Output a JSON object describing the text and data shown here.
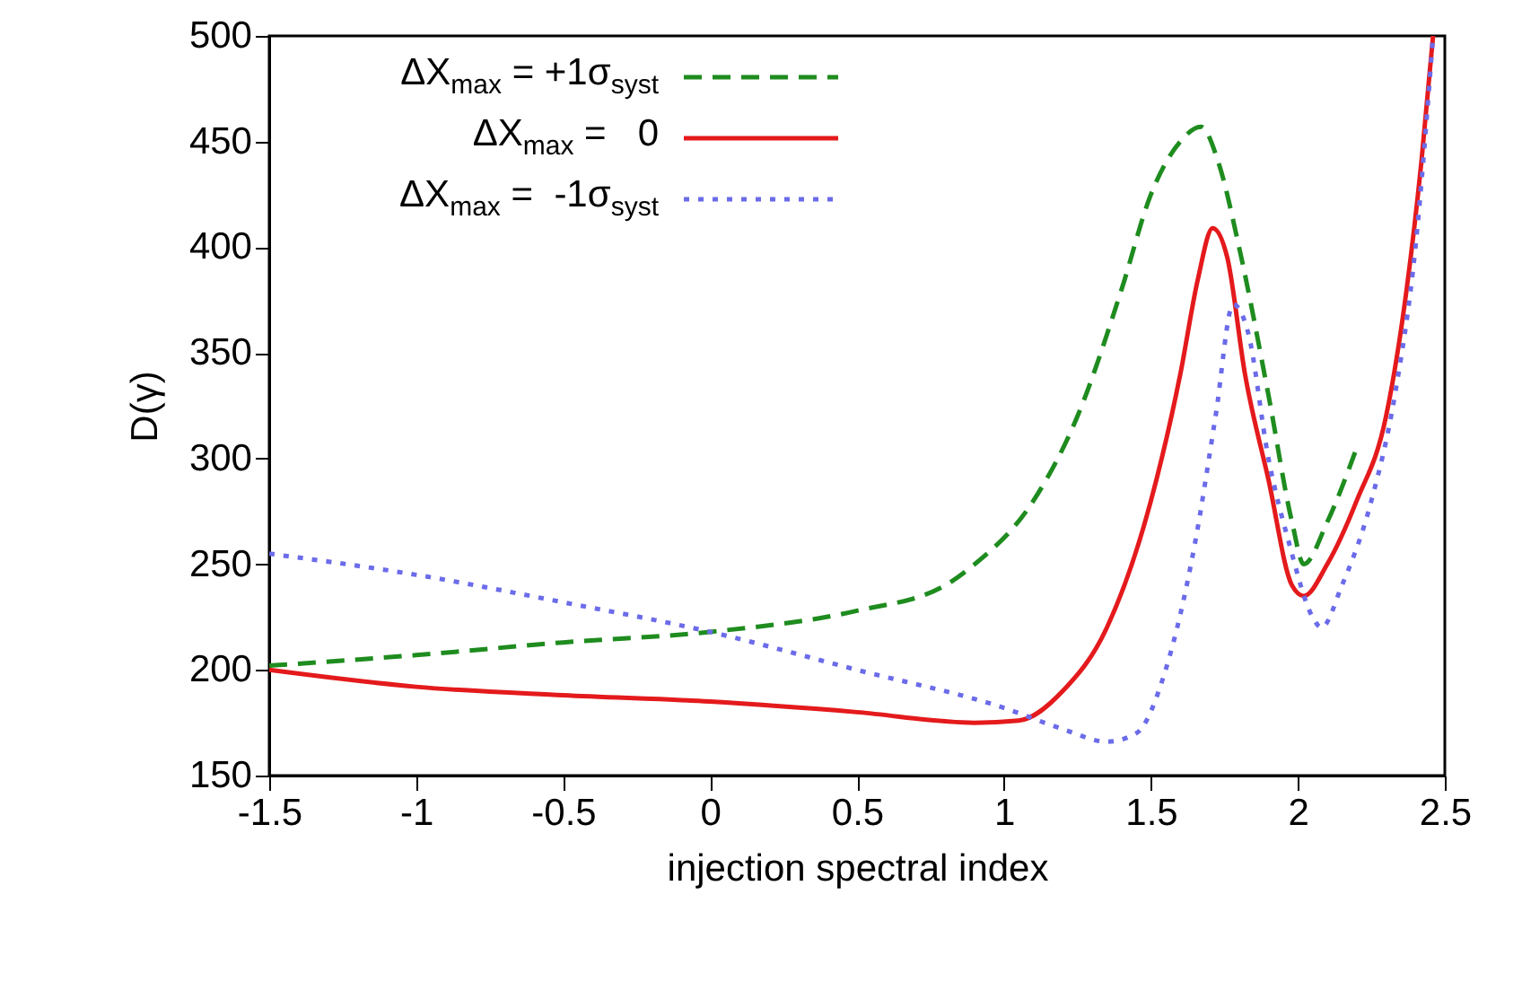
{
  "chart_data": {
    "type": "line",
    "xlabel": "injection spectral index",
    "ylabel": "D(γ)",
    "xlim": [
      -1.5,
      2.5
    ],
    "ylim": [
      150,
      500
    ],
    "xticks": [
      -1.5,
      -1,
      -0.5,
      0,
      0.5,
      1,
      1.5,
      2,
      2.5
    ],
    "yticks": [
      150,
      200,
      250,
      300,
      350,
      400,
      450,
      500
    ],
    "grid": false,
    "legend": "top left",
    "series": [
      {
        "name": "ΔX$_{max}$ = +1σ$_{syst}$",
        "color": "#1e8c1e",
        "line_style": "dashed",
        "x": [
          -1.5,
          -1,
          -0.5,
          0,
          0.5,
          0.8,
          0.9,
          1.1,
          1.25,
          1.4,
          1.5,
          1.6,
          1.67,
          1.73,
          1.8,
          1.9,
          1.98,
          2.02,
          2.1,
          2.2
        ],
        "values": [
          202,
          207,
          213,
          218,
          228,
          240,
          250,
          280,
          320,
          380,
          425,
          450,
          457,
          440,
          400,
          330,
          270,
          250,
          270,
          305
        ]
      },
      {
        "name": "ΔX$_{max}$ =   0",
        "color": "#e41a1c",
        "line_style": "solid",
        "x": [
          -1.5,
          -1,
          -0.5,
          0,
          0.5,
          0.9,
          1.05,
          1.2,
          1.35,
          1.5,
          1.6,
          1.66,
          1.71,
          1.76,
          1.82,
          1.9,
          1.98,
          2.02,
          2.1,
          2.2,
          2.3,
          2.37,
          2.42,
          2.46
        ],
        "values": [
          200,
          192,
          188,
          185,
          180,
          175,
          176,
          190,
          220,
          280,
          340,
          385,
          409,
          395,
          340,
          290,
          240,
          235,
          250,
          280,
          320,
          380,
          440,
          500
        ]
      },
      {
        "name": "ΔX$_{max}$ =  -1σ$_{syst}$",
        "color": "#6b6bea",
        "line_style": "dotted",
        "x": [
          -1.5,
          -1,
          -0.5,
          0,
          0.5,
          1,
          1.2,
          1.35,
          1.45,
          1.55,
          1.65,
          1.72,
          1.78,
          1.83,
          1.9,
          1.97,
          2.05,
          2.08,
          2.15,
          2.25,
          2.33,
          2.4,
          2.46
        ],
        "values": [
          255,
          245,
          232,
          218,
          200,
          182,
          172,
          166,
          170,
          200,
          260,
          320,
          373,
          360,
          300,
          260,
          225,
          220,
          240,
          280,
          330,
          400,
          500
        ]
      }
    ]
  }
}
